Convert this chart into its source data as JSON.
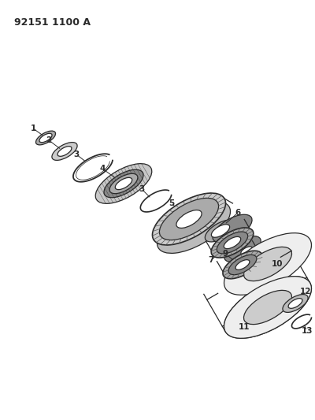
{
  "title_code": "92151 1100 A",
  "background_color": "#ffffff",
  "line_color": "#2a2a2a",
  "figsize": [
    4.0,
    5.33
  ],
  "dpi": 100
}
